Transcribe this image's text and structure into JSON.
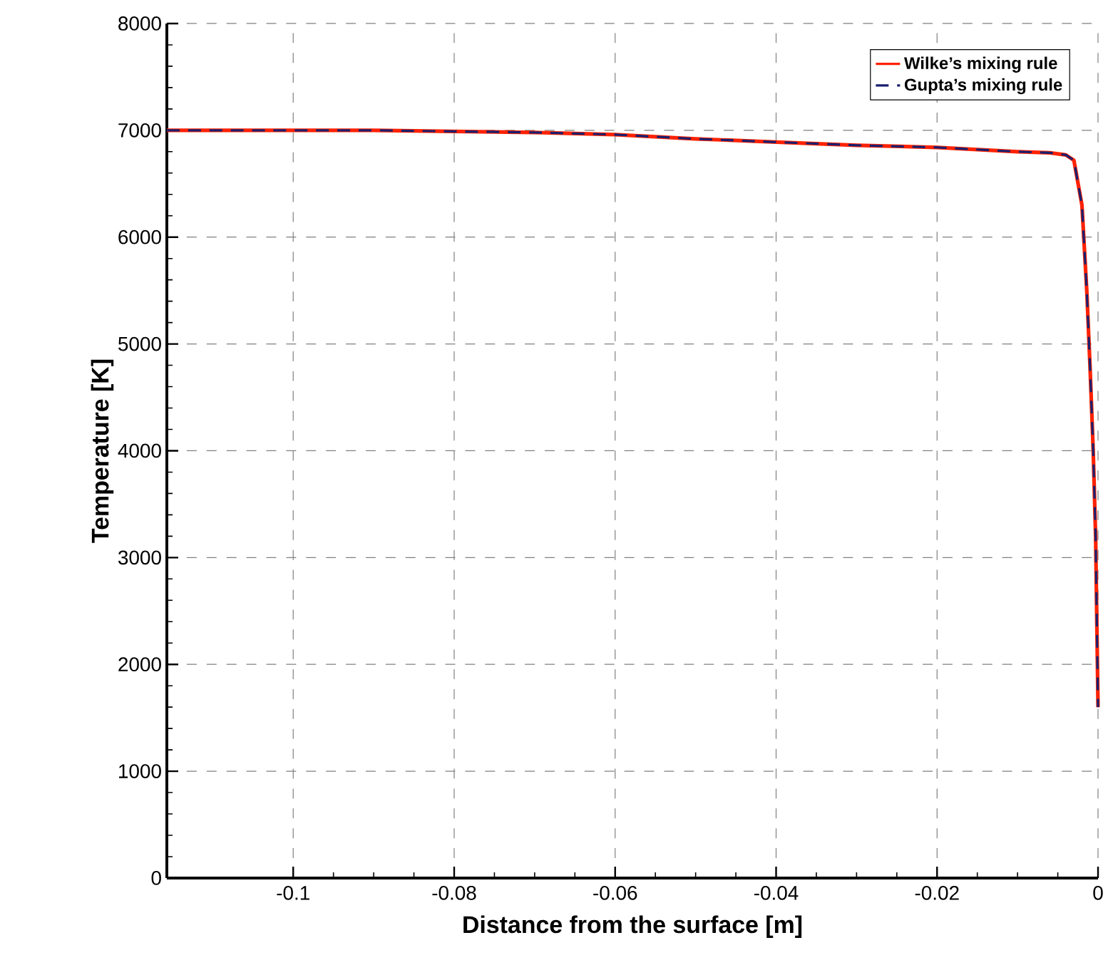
{
  "chart_data": {
    "type": "line",
    "xlabel": "Distance from the surface [m]",
    "ylabel": "Temperature [K]",
    "xlim": [
      -0.1157,
      0
    ],
    "ylim": [
      0,
      8000
    ],
    "xticks": [
      -0.1,
      -0.08,
      -0.06,
      -0.04,
      -0.02,
      0
    ],
    "yticks": [
      0,
      1000,
      2000,
      3000,
      4000,
      5000,
      6000,
      7000,
      8000
    ],
    "grid": true,
    "legend": "top right",
    "series": [
      {
        "name": "Wilke’s mixing rule",
        "color": "#ff2200",
        "line_style": "solid",
        "x": [
          -0.1157,
          -0.1,
          -0.09,
          -0.08,
          -0.07,
          -0.06,
          -0.05,
          -0.04,
          -0.03,
          -0.02,
          -0.01,
          -0.006,
          -0.004,
          -0.003,
          -0.002,
          -0.0014,
          -0.001,
          -0.0006,
          -0.0003,
          0
        ],
        "values": [
          7000,
          7000,
          7000,
          6990,
          6980,
          6960,
          6920,
          6890,
          6860,
          6840,
          6800,
          6790,
          6770,
          6720,
          6300,
          5500,
          4800,
          4000,
          3200,
          1600
        ]
      },
      {
        "name": "Gupta’s mixing rule",
        "color": "#1a1f70",
        "line_style": "dashed",
        "x": [
          -0.1157,
          -0.1,
          -0.09,
          -0.08,
          -0.07,
          -0.06,
          -0.05,
          -0.04,
          -0.03,
          -0.02,
          -0.01,
          -0.006,
          -0.004,
          -0.003,
          -0.002,
          -0.0014,
          -0.001,
          -0.0006,
          -0.0003,
          0
        ],
        "values": [
          7000,
          7000,
          7000,
          6990,
          6980,
          6960,
          6920,
          6890,
          6860,
          6840,
          6800,
          6790,
          6770,
          6720,
          6300,
          5500,
          4800,
          4000,
          3200,
          1600
        ]
      }
    ]
  }
}
